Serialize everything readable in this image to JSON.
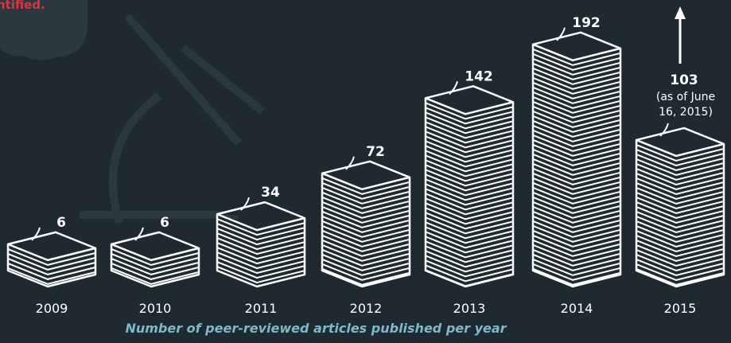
{
  "chart_data": {
    "type": "bar",
    "top_note": "ntified.",
    "caption": "Number of peer-reviewed articles published per year",
    "categories": [
      "2009",
      "2010",
      "2011",
      "2012",
      "2013",
      "2014",
      "2015"
    ],
    "values": [
      6,
      6,
      34,
      72,
      142,
      192,
      103
    ],
    "annotation": [
      "(as of June",
      "16, 2015)"
    ],
    "color": "#ffffff"
  }
}
